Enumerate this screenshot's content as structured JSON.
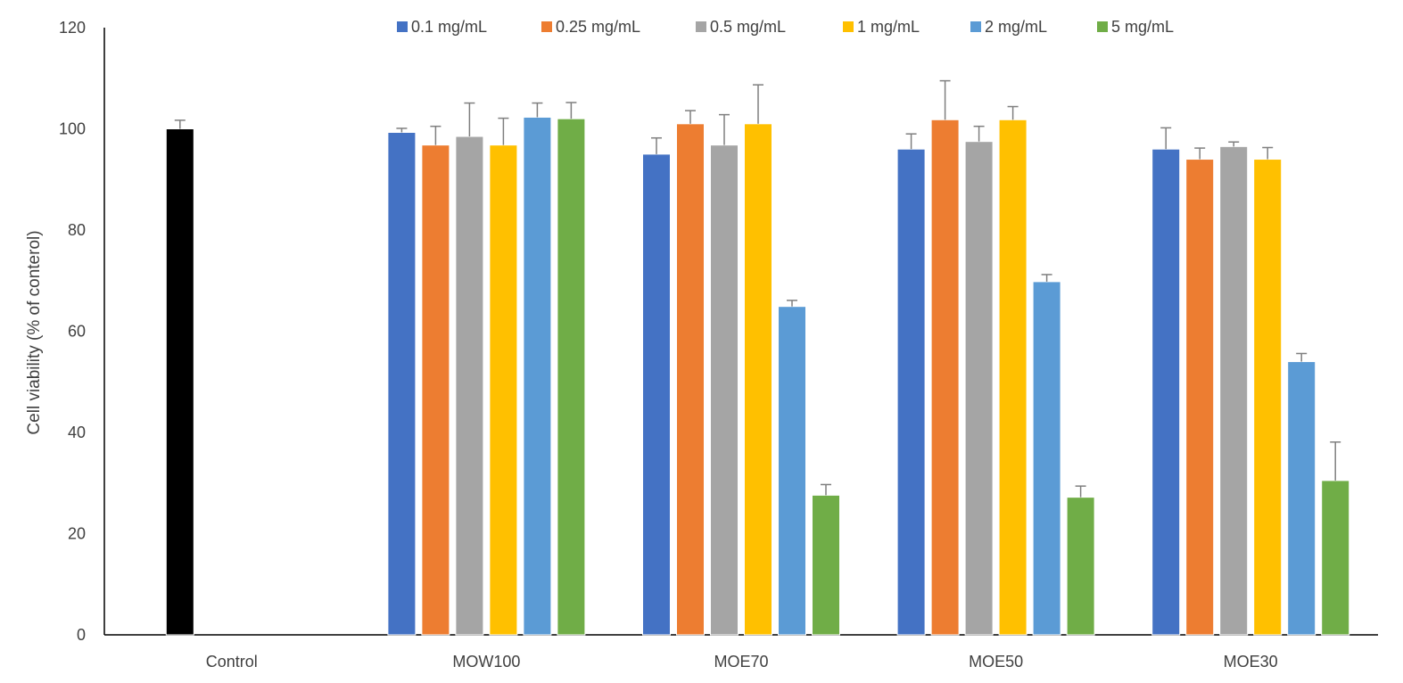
{
  "chart_data": {
    "type": "bar",
    "title": "",
    "xlabel": "",
    "ylabel": "Cell viability (% of conterol)",
    "ylim": [
      0,
      120
    ],
    "yticks": [
      0,
      20,
      40,
      60,
      80,
      100,
      120
    ],
    "grid": false,
    "legend_position": "top",
    "categories": [
      "Control",
      "MOW100",
      "MOE70",
      "MOE50",
      "MOE30"
    ],
    "control": {
      "value": 100,
      "error": 1.7,
      "color": "#000000"
    },
    "series": [
      {
        "name": "0.1 mg/mL",
        "color": "#4472C4",
        "values": [
          null,
          99.3,
          95.0,
          96.0,
          96.0
        ],
        "errors": [
          null,
          0.8,
          3.2,
          3.0,
          4.2
        ]
      },
      {
        "name": "0.25 mg/mL",
        "color": "#ED7D31",
        "values": [
          null,
          96.8,
          101.0,
          101.8,
          94.0
        ],
        "errors": [
          null,
          3.7,
          2.6,
          7.7,
          2.2
        ]
      },
      {
        "name": "0.5 mg/mL",
        "color": "#A5A5A5",
        "values": [
          null,
          98.5,
          96.8,
          97.5,
          96.5
        ],
        "errors": [
          null,
          6.6,
          6.0,
          3.0,
          0.9
        ]
      },
      {
        "name": "1 mg/mL",
        "color": "#FFC000",
        "values": [
          null,
          96.8,
          101.0,
          101.8,
          94.0
        ],
        "errors": [
          null,
          5.3,
          7.7,
          2.6,
          2.3
        ]
      },
      {
        "name": "2 mg/mL",
        "color": "#5B9BD5",
        "values": [
          null,
          102.3,
          64.9,
          69.8,
          54.0
        ],
        "errors": [
          null,
          2.8,
          1.2,
          1.4,
          1.6
        ]
      },
      {
        "name": "5 mg/mL",
        "color": "#70AD47",
        "values": [
          null,
          102.0,
          27.6,
          27.2,
          30.5
        ],
        "errors": [
          null,
          3.2,
          2.1,
          2.2,
          7.6
        ]
      }
    ]
  }
}
